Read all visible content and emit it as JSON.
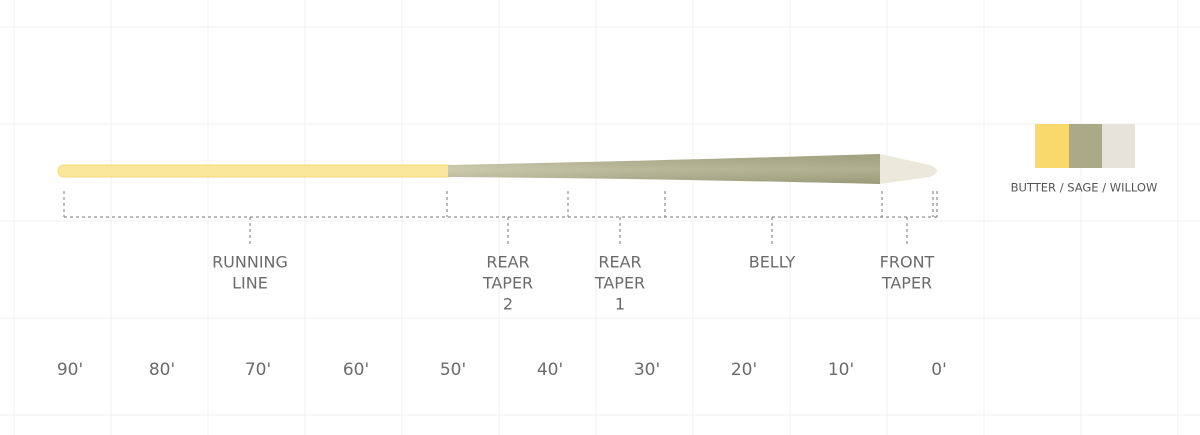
{
  "sections": [
    {
      "label": [
        "RUNNING",
        "LINE"
      ]
    },
    {
      "label": [
        "REAR",
        "TAPER",
        "2"
      ]
    },
    {
      "label": [
        "REAR",
        "TAPER",
        "1"
      ]
    },
    {
      "label": [
        "BELLY"
      ]
    },
    {
      "label": [
        "FRONT",
        "TAPER"
      ]
    }
  ],
  "ruler": [
    "90'",
    "80'",
    "70'",
    "60'",
    "50'",
    "40'",
    "30'",
    "20'",
    "10'",
    "0'"
  ],
  "legend": {
    "label": "BUTTER / SAGE / WILLOW"
  }
}
